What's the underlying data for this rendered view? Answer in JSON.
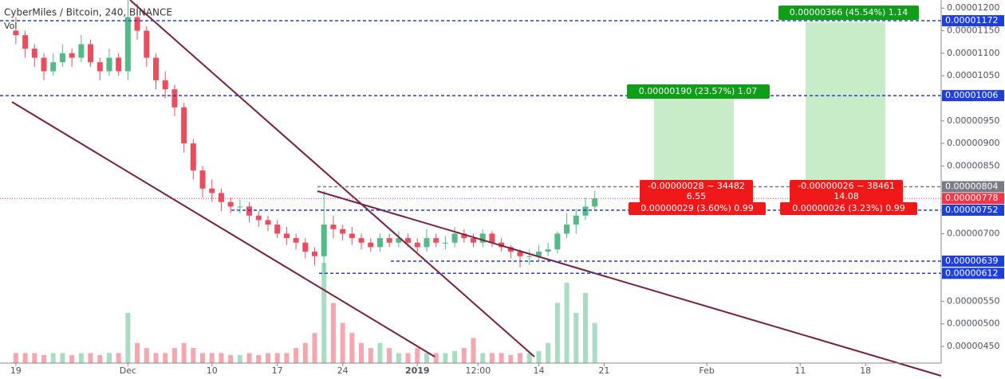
{
  "chart_data": {
    "type": "candlestick",
    "title": "CyberMiles / Bitcoin, 240, BINANCE",
    "volume_label": "Vol",
    "x": [
      0,
      1,
      2,
      3,
      4,
      5,
      6,
      7,
      8,
      9,
      10,
      11,
      12,
      13,
      14,
      15,
      16,
      17,
      18,
      19,
      20,
      21,
      22,
      23,
      24,
      25,
      26,
      27,
      28,
      29,
      30,
      31,
      32,
      33,
      34,
      35,
      36,
      37,
      38,
      39,
      40,
      41,
      42,
      43,
      44,
      45,
      46,
      47,
      48,
      49,
      50,
      51,
      52,
      53,
      54,
      55,
      56,
      57,
      58,
      59,
      60,
      61,
      62
    ],
    "open": [
      1.15e-05,
      1.14e-05,
      1.11e-05,
      1.09e-05,
      1.06e-05,
      1.08e-05,
      1.1e-05,
      1.09e-05,
      1.12e-05,
      1.08e-05,
      1.06e-05,
      1.09e-05,
      1.06e-05,
      1.18e-05,
      1.15e-05,
      1.09e-05,
      1.04e-05,
      1.02e-05,
      9.8e-06,
      9e-06,
      8.4e-06,
      8e-06,
      7.9e-06,
      7.7e-06,
      7.6e-06,
      7.6e-06,
      7.4e-06,
      7.3e-06,
      7.2e-06,
      7e-06,
      6.9e-06,
      6.8e-06,
      6.6e-06,
      6.5e-06,
      7.2e-06,
      7.1e-06,
      7e-06,
      6.9e-06,
      6.8e-06,
      6.7e-06,
      6.9e-06,
      6.8e-06,
      6.9e-06,
      6.8e-06,
      6.7e-06,
      6.9e-06,
      6.8e-06,
      6.8e-06,
      7e-06,
      6.9e-06,
      6.8e-06,
      7e-06,
      6.8e-06,
      6.7e-06,
      6.6e-06,
      6.5e-06,
      6.5e-06,
      6.6e-06,
      6.65e-06,
      7e-06,
      7.2e-06,
      7.4e-06,
      7.6e-06
    ],
    "high": [
      1.18e-05,
      1.15e-05,
      1.12e-05,
      1.1e-05,
      1.1e-05,
      1.12e-05,
      1.11e-05,
      1.14e-05,
      1.13e-05,
      1.09e-05,
      1.11e-05,
      1.1e-05,
      1.23e-05,
      1.21e-05,
      1.16e-05,
      1.1e-05,
      1.06e-05,
      1.03e-05,
      9.9e-06,
      9.1e-06,
      8.5e-06,
      8.2e-06,
      8e-06,
      7.8e-06,
      7.75e-06,
      7.7e-06,
      7.5e-06,
      7.4e-06,
      7.3e-06,
      7.15e-06,
      7e-06,
      6.9e-06,
      6.7e-06,
      7.95e-06,
      7.4e-06,
      7.2e-06,
      7.15e-06,
      7e-06,
      6.9e-06,
      7e-06,
      7e-06,
      7.05e-06,
      7e-06,
      6.9e-06,
      7.1e-06,
      7e-06,
      6.95e-06,
      7.15e-06,
      7.1e-06,
      7e-06,
      7.1e-06,
      7.05e-06,
      6.9e-06,
      6.75e-06,
      6.65e-06,
      6.65e-06,
      6.75e-06,
      6.8e-06,
      7.05e-06,
      7.45e-06,
      7.55e-06,
      7.8e-06,
      7.95e-06
    ],
    "low": [
      1.12e-05,
      1.09e-05,
      1.07e-05,
      1.04e-05,
      1.05e-05,
      1.07e-05,
      1.07e-05,
      1.08e-05,
      1.07e-05,
      1.04e-05,
      1.05e-05,
      1.05e-05,
      1.04e-05,
      1.13e-05,
      1.07e-05,
      1.02e-05,
      1e-05,
      9.6e-06,
      8.8e-06,
      8.2e-06,
      7.8e-06,
      7.7e-06,
      7.5e-06,
      7.45e-06,
      7.45e-06,
      7.25e-06,
      7.15e-06,
      7.05e-06,
      6.9e-06,
      6.75e-06,
      6.65e-06,
      6.45e-06,
      6.3e-06,
      6.1e-06,
      6.9e-06,
      6.85e-06,
      6.75e-06,
      6.65e-06,
      6.6e-06,
      6.6e-06,
      6.7e-06,
      6.7e-06,
      6.7e-06,
      6.6e-06,
      6.6e-06,
      6.7e-06,
      6.65e-06,
      6.7e-06,
      6.8e-06,
      6.7e-06,
      6.7e-06,
      6.7e-06,
      6.6e-06,
      6.45e-06,
      6.25e-06,
      6.3e-06,
      6.4e-06,
      6.5e-06,
      6.55e-06,
      6.9e-06,
      7e-06,
      7.3e-06,
      7.5e-06
    ],
    "close": [
      1.14e-05,
      1.11e-05,
      1.09e-05,
      1.06e-05,
      1.08e-05,
      1.1e-05,
      1.09e-05,
      1.12e-05,
      1.08e-05,
      1.06e-05,
      1.09e-05,
      1.06e-05,
      1.18e-05,
      1.15e-05,
      1.09e-05,
      1.04e-05,
      1.02e-05,
      9.8e-06,
      9e-06,
      8.4e-06,
      8e-06,
      7.9e-06,
      7.7e-06,
      7.6e-06,
      7.6e-06,
      7.4e-06,
      7.3e-06,
      7.2e-06,
      7e-06,
      6.9e-06,
      6.8e-06,
      6.6e-06,
      6.5e-06,
      7.2e-06,
      7.1e-06,
      7e-06,
      6.9e-06,
      6.8e-06,
      6.7e-06,
      6.9e-06,
      6.8e-06,
      6.9e-06,
      6.8e-06,
      6.7e-06,
      6.9e-06,
      6.8e-06,
      6.8e-06,
      7e-06,
      6.9e-06,
      6.8e-06,
      7e-06,
      6.8e-06,
      6.7e-06,
      6.6e-06,
      6.5e-06,
      6.5e-06,
      6.6e-06,
      6.65e-06,
      7e-06,
      7.2e-06,
      7.4e-06,
      7.6e-06,
      7.78e-06
    ],
    "volume": [
      1,
      1,
      1,
      0.8,
      1,
      1,
      0.8,
      1,
      1,
      0.8,
      1,
      1,
      5,
      2,
      1.5,
      1,
      1,
      1.5,
      2,
      1.5,
      1,
      1,
      1,
      0.8,
      0.8,
      1,
      0.8,
      1,
      1,
      1,
      1.5,
      2,
      3,
      10,
      6,
      4,
      3,
      2,
      1.5,
      2,
      1.5,
      1,
      1,
      1.5,
      1,
      1,
      1,
      1.2,
      1.5,
      2.5,
      1,
      1,
      1,
      0.8,
      1,
      1,
      1.2,
      2,
      6,
      8,
      5,
      7,
      4
    ],
    "up_color": "#53b987",
    "down_color": "#eb4d5c",
    "volume_up_color": "#a9dcc3",
    "volume_down_color": "#f5a6ae",
    "xlim": [
      -1.7,
      99.1
    ],
    "xticks": [
      {
        "value": 0,
        "label": "19"
      },
      {
        "value": 12,
        "label": "Dec"
      },
      {
        "value": 21,
        "label": "10"
      },
      {
        "value": 28,
        "label": "17"
      },
      {
        "value": 35,
        "label": "24"
      },
      {
        "value": 43,
        "label": "2019"
      },
      {
        "value": 49.5,
        "label": "12:00"
      },
      {
        "value": 56,
        "label": "14"
      },
      {
        "value": 63,
        "label": "21"
      },
      {
        "value": 74,
        "label": "Feb"
      },
      {
        "value": 84,
        "label": "11"
      },
      {
        "value": 91,
        "label": "18"
      }
    ],
    "ylim": [
      4.13e-06,
      1.218e-05
    ],
    "yticks": [
      {
        "value": 4.5e-06,
        "label": "0.00000450"
      },
      {
        "value": 5e-06,
        "label": "0.00000500"
      },
      {
        "value": 5.5e-06,
        "label": "0.00000550"
      },
      {
        "value": 7e-06,
        "label": "0.00000700"
      },
      {
        "value": 8.5e-06,
        "label": "0.00000850"
      },
      {
        "value": 9e-06,
        "label": "0.00000900"
      },
      {
        "value": 9.5e-06,
        "label": "0.00000950"
      },
      {
        "value": 1e-05,
        "label": "0.00001000"
      },
      {
        "value": 1.05e-05,
        "label": "0.00001050"
      },
      {
        "value": 1.1e-05,
        "label": "0.00001100"
      },
      {
        "value": 1.15e-05,
        "label": "0.00001150"
      },
      {
        "value": 1.2e-05,
        "label": "0.00001200"
      }
    ],
    "price_lines": [
      {
        "value": 1.172e-05,
        "color": "#1e3fe0"
      },
      {
        "value": 1.006e-05,
        "color": "#1e3fe0"
      },
      {
        "value": {
          "value": 8.04e-06,
          "label": "0.00000804"
        },
        "color": "#787b86"
      },
      {
        "value": {
          "value": 7.78e-06,
          "label": "0.00000778"
        },
        "color": "#f23645"
      },
      {
        "value": {
          "value": 7.52e-06,
          "label": "0.00000752"
        },
        "color": "#1e3fe0"
      },
      {
        "value": {
          "value": 6.39e-06,
          "label": "0.00000639"
        },
        "color": "#1e3fe0"
      },
      {
        "value": {
          "value": 6.12e-06,
          "label": "0.00000612"
        },
        "color": "#1e3fe0"
      }
    ],
    "annotations": {
      "target1": "0.00000190 (23.57%) 1.07",
      "target2": "0.00000366 (45.54%) 1.14",
      "stop1_a": "-0.00000028 ~ 34482",
      "stop1_b": "6.55",
      "stop1_c": "0.00000029 (3.60%) 0.99",
      "stop2_a": "-0.00000026 ~ 38461",
      "stop2_b": "14.08",
      "stop2_c": "0.00000026 (3.23%) 0.99"
    }
  }
}
